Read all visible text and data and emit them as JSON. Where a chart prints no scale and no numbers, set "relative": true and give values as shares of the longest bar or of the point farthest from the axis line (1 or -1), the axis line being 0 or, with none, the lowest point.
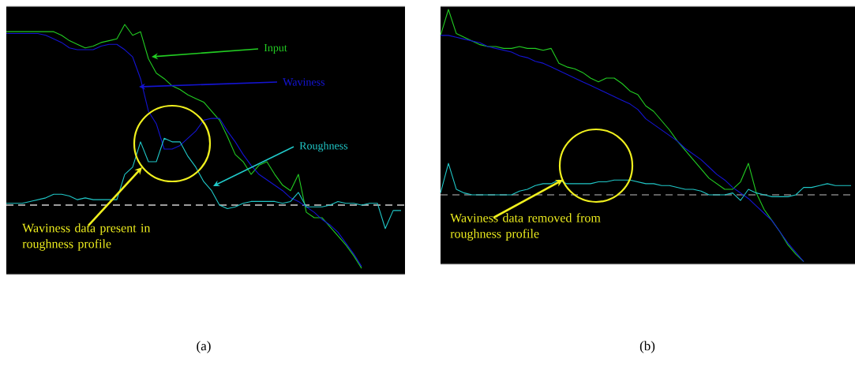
{
  "chart_data": [
    {
      "type": "line",
      "relative": true,
      "xlabel": "(a)",
      "categories": [
        null,
        null,
        null,
        null,
        null,
        null,
        null,
        null,
        null,
        null,
        null,
        null,
        null,
        null,
        null,
        null,
        null,
        null,
        null,
        null,
        null,
        null,
        null,
        null,
        null,
        null,
        null,
        null,
        null,
        null,
        null,
        null,
        null,
        null,
        null,
        null,
        null,
        null,
        null,
        null,
        null,
        null,
        null,
        null,
        null,
        null,
        null,
        null,
        null,
        null,
        null
      ],
      "series": [
        {
          "name": "Input",
          "color": "#22cc22",
          "values": [
            0.96,
            0.96,
            0.96,
            0.96,
            0.96,
            0.96,
            0.96,
            0.94,
            0.91,
            0.89,
            0.87,
            0.88,
            0.9,
            0.91,
            0.92,
            1.0,
            0.94,
            0.96,
            0.81,
            0.73,
            0.7,
            0.66,
            0.64,
            0.61,
            0.59,
            0.57,
            0.52,
            0.47,
            0.38,
            0.28,
            0.24,
            0.17,
            0.22,
            0.24,
            0.17,
            0.11,
            0.08,
            0.17,
            -0.04,
            -0.07,
            -0.07,
            -0.12,
            -0.17,
            -0.22,
            -0.28,
            -0.35,
            null,
            null,
            null,
            null,
            null
          ]
        },
        {
          "name": "Waviness",
          "color": "#1414d2",
          "values": [
            0.95,
            0.95,
            0.95,
            0.95,
            0.95,
            0.94,
            0.92,
            0.9,
            0.87,
            0.86,
            0.86,
            0.86,
            0.88,
            0.89,
            0.89,
            0.86,
            0.82,
            0.7,
            0.52,
            0.45,
            0.31,
            0.31,
            0.33,
            0.37,
            0.41,
            0.47,
            0.48,
            0.48,
            0.41,
            0.35,
            0.28,
            0.22,
            0.17,
            0.14,
            0.11,
            0.08,
            0.04,
            0.02,
            -0.01,
            -0.04,
            -0.08,
            -0.11,
            -0.15,
            -0.21,
            -0.27,
            -0.34,
            null,
            null,
            null,
            null,
            null
          ]
        },
        {
          "name": "Roughness",
          "color": "#20c8c8",
          "values": [
            0.01,
            0.01,
            0.01,
            0.02,
            0.03,
            0.04,
            0.06,
            0.06,
            0.05,
            0.03,
            0.04,
            0.03,
            0.03,
            0.03,
            0.03,
            0.17,
            0.21,
            0.35,
            0.24,
            0.24,
            0.37,
            0.35,
            0.35,
            0.27,
            0.21,
            0.13,
            0.08,
            0.0,
            -0.02,
            -0.01,
            0.01,
            0.02,
            0.02,
            0.02,
            0.02,
            0.01,
            0.02,
            0.07,
            -0.01,
            -0.01,
            -0.01,
            0.0,
            0.02,
            0.01,
            0.01,
            0.0,
            0.01,
            0.01,
            -0.13,
            -0.03,
            -0.03
          ]
        }
      ],
      "ref_lines": [
        {
          "axis": "y",
          "value": 0,
          "color": "#d0d0d0",
          "line_style": "dashed"
        }
      ],
      "annotations": [
        "Waviness data present in roughness profile"
      ]
    },
    {
      "type": "line",
      "relative": true,
      "xlabel": "(b)",
      "categories": [
        null,
        null,
        null,
        null,
        null,
        null,
        null,
        null,
        null,
        null,
        null,
        null,
        null,
        null,
        null,
        null,
        null,
        null,
        null,
        null,
        null,
        null,
        null,
        null,
        null,
        null,
        null,
        null,
        null,
        null,
        null,
        null,
        null,
        null,
        null,
        null,
        null,
        null,
        null,
        null,
        null,
        null,
        null,
        null,
        null,
        null,
        null,
        null,
        null,
        null,
        null,
        null,
        null
      ],
      "series": [
        {
          "color": "#22cc22",
          "values": [
            0.86,
            1.0,
            0.87,
            0.85,
            0.83,
            0.81,
            0.8,
            0.8,
            0.79,
            0.79,
            0.8,
            0.79,
            0.79,
            0.78,
            0.79,
            0.71,
            0.69,
            0.68,
            0.66,
            0.63,
            0.61,
            0.63,
            0.63,
            0.6,
            0.56,
            0.54,
            0.48,
            0.45,
            0.4,
            0.35,
            0.29,
            0.24,
            0.19,
            0.14,
            0.09,
            0.06,
            0.03,
            0.03,
            0.07,
            0.17,
            0.01,
            -0.08,
            -0.14,
            -0.2,
            -0.27,
            -0.32,
            -0.36,
            null,
            null,
            null,
            null,
            null,
            null
          ]
        },
        {
          "color": "#1414d2",
          "values": [
            0.86,
            0.86,
            0.85,
            0.84,
            0.83,
            0.82,
            0.8,
            0.79,
            0.78,
            0.77,
            0.75,
            0.74,
            0.72,
            0.71,
            0.69,
            0.67,
            0.65,
            0.63,
            0.61,
            0.59,
            0.57,
            0.55,
            0.53,
            0.51,
            0.49,
            0.46,
            0.41,
            0.38,
            0.35,
            0.32,
            0.29,
            0.25,
            0.22,
            0.19,
            0.15,
            0.11,
            0.08,
            0.04,
            0.01,
            -0.02,
            -0.06,
            -0.1,
            -0.14,
            -0.2,
            -0.26,
            -0.31,
            -0.36,
            null,
            null,
            null,
            null,
            null,
            null
          ]
        },
        {
          "color": "#20c8c8",
          "values": [
            0.01,
            0.17,
            0.03,
            0.01,
            0.0,
            0.0,
            0.0,
            0.0,
            0.0,
            0.0,
            0.02,
            0.03,
            0.05,
            0.06,
            0.06,
            0.08,
            0.06,
            0.06,
            0.06,
            0.06,
            0.07,
            0.07,
            0.08,
            0.08,
            0.08,
            0.07,
            0.06,
            0.06,
            0.05,
            0.05,
            0.04,
            0.03,
            0.03,
            0.02,
            0.0,
            0.0,
            0.0,
            0.01,
            -0.03,
            0.03,
            0.01,
            0.0,
            -0.01,
            -0.01,
            -0.01,
            0.0,
            0.04,
            0.04,
            0.05,
            0.06,
            0.05,
            0.05,
            0.05
          ]
        }
      ],
      "ref_lines": [
        {
          "axis": "y",
          "value": 0,
          "color": "#808080",
          "line_style": "dashed"
        }
      ],
      "annotations": [
        "Waviness data removed from roughness profile"
      ]
    }
  ]
}
